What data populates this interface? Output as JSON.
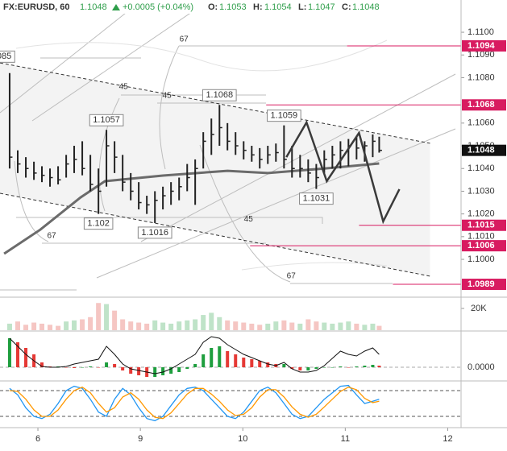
{
  "header": {
    "symbol": "FX:EURUSD, 60",
    "last": "1.1048",
    "change": "+0.0005 (+0.04%)",
    "o_label": "O:",
    "open": "1.1053",
    "h_label": "H:",
    "high": "1.1054",
    "l_label": "L:",
    "low": "1.1047",
    "c_label": "C:",
    "close": "1.1048"
  },
  "chart_data": [
    {
      "type": "ohlc",
      "color": "#222222",
      "x": [
        -0.276,
        -0.197,
        -0.118,
        -0.039,
        0.039,
        0.118,
        0.197,
        0.276,
        0.354,
        0.433,
        0.512,
        0.591,
        0.669,
        0.748,
        0.827,
        0.906,
        0.984,
        1.063,
        1.142,
        1.22,
        1.299,
        1.378,
        1.457,
        1.535,
        1.614,
        1.693,
        1.772,
        1.85,
        1.929,
        2.008,
        2.087,
        2.165,
        2.244,
        2.323,
        2.402,
        2.48,
        2.559,
        2.638,
        2.717,
        2.795,
        2.874,
        2.953,
        3.031,
        3.11,
        3.189,
        3.268,
        3.331
      ],
      "high": [
        1.1082,
        1.1048,
        1.1045,
        1.1043,
        1.1041,
        1.104,
        1.1041,
        1.1046,
        1.105,
        1.1052,
        1.1046,
        1.104,
        1.1057,
        1.1052,
        1.1046,
        1.1038,
        1.1034,
        1.1028,
        1.103,
        1.1032,
        1.1034,
        1.1036,
        1.1042,
        1.1044,
        1.1056,
        1.1062,
        1.1068,
        1.106,
        1.1056,
        1.1052,
        1.105,
        1.1049,
        1.105,
        1.1051,
        1.1059,
        1.105,
        1.1046,
        1.1044,
        1.1042,
        1.1048,
        1.105,
        1.1052,
        1.1053,
        1.1054,
        1.1052,
        1.1055,
        1.1054
      ],
      "low": [
        1.104,
        1.1038,
        1.1036,
        1.1035,
        1.1034,
        1.1032,
        1.1033,
        1.1036,
        1.1038,
        1.1037,
        1.103,
        1.102,
        1.1032,
        1.1038,
        1.103,
        1.1026,
        1.1022,
        1.102,
        1.1016,
        1.1022,
        1.1024,
        1.1026,
        1.103,
        1.1024,
        1.104,
        1.1046,
        1.105,
        1.1048,
        1.1046,
        1.1044,
        1.1043,
        1.104,
        1.1042,
        1.1043,
        1.104,
        1.1036,
        1.1036,
        1.1034,
        1.1031,
        1.1038,
        1.104,
        1.104,
        1.1041,
        1.1044,
        1.1043,
        1.1045,
        1.1047
      ],
      "close": [
        1.1045,
        1.1042,
        1.104,
        1.1038,
        1.1037,
        1.1036,
        1.1035,
        1.1042,
        1.1044,
        1.104,
        1.1033,
        1.103,
        1.105,
        1.1045,
        1.1034,
        1.103,
        1.1025,
        1.1024,
        1.1026,
        1.1028,
        1.103,
        1.1032,
        1.1036,
        1.104,
        1.1052,
        1.1055,
        1.1058,
        1.1052,
        1.105,
        1.1048,
        1.1046,
        1.1044,
        1.1046,
        1.1047,
        1.1044,
        1.104,
        1.104,
        1.1038,
        1.1036,
        1.1044,
        1.1046,
        1.1048,
        1.105,
        1.1049,
        1.105,
        1.1052,
        1.1048
      ],
      "ma": {
        "color": "#6b6b6b",
        "x": [
          -0.33,
          0.024,
          0.417,
          0.654,
          1.22,
          1.85,
          2.244,
          2.795,
          3.331
        ],
        "values": [
          1.10025,
          1.10131,
          1.10273,
          1.10344,
          1.10369,
          1.1039,
          1.1038,
          1.104,
          1.10422
        ]
      },
      "channel": {
        "color": "#333333",
        "fill": "#f3f3f3",
        "x": [
          -0.37,
          3.827
        ],
        "upper": [
          1.10865,
          1.10511
        ],
        "lower": [
          1.10291,
          1.09926
        ]
      },
      "projection": {
        "color": "#3a3a3a",
        "x": [
          2.425,
          2.622,
          2.819,
          3.134,
          3.37,
          3.528
        ],
        "values": [
          1.1045,
          1.10603,
          1.10344,
          1.10557,
          1.10167,
          1.10309
        ]
      },
      "levels": [
        {
          "value": 1.1094,
          "x0": 3.016
        },
        {
          "value": 1.1068,
          "x0": 2.228
        },
        {
          "value": 1.1015,
          "x0": 3.134
        },
        {
          "value": 1.1006,
          "x0": 2.071
        },
        {
          "value": 1.0989,
          "x0": 3.465
        }
      ],
      "level_color": "#d81b60",
      "last": 1.1048,
      "annotations": [
        {
          "x": -0.33,
          "value": 1.1085,
          "label": "085",
          "side": "above"
        },
        {
          "x": 0.669,
          "value": 1.1057,
          "side": "above"
        },
        {
          "x": 1.772,
          "value": 1.1068,
          "side": "above"
        },
        {
          "x": 2.402,
          "value": 1.1059,
          "side": "above"
        },
        {
          "x": 2.717,
          "value": 1.1031,
          "side": "below"
        },
        {
          "x": 0.591,
          "value": 1.102,
          "side": "below"
        },
        {
          "x": 1.142,
          "value": 1.1016,
          "side": "below"
        }
      ],
      "fib_labels": [
        {
          "x": 1.425,
          "y": 1.10968,
          "value": 67
        },
        {
          "x": 0.835,
          "y": 1.10759,
          "value": 45
        },
        {
          "x": 1.26,
          "y": 1.1072,
          "value": 45
        },
        {
          "x": 2.055,
          "y": 1.10177,
          "value": 45
        },
        {
          "x": 0.134,
          "y": 1.10103,
          "value": 67
        },
        {
          "x": 2.472,
          "y": 1.09926,
          "value": 67
        }
      ],
      "xlim": [
        -0.37,
        4.13
      ],
      "xticks": [
        {
          "value": 0,
          "label": "6"
        },
        {
          "value": 1,
          "label": "9"
        },
        {
          "value": 2,
          "label": "10"
        },
        {
          "value": 3,
          "label": "11"
        },
        {
          "value": 4,
          "label": "12"
        }
      ],
      "ylim": [
        1.09837,
        1.11142
      ],
      "yticks": [
        {
          "value": 1.11,
          "label": "1.1100"
        },
        {
          "value": 1.109,
          "label": "1.1090"
        },
        {
          "value": 1.108,
          "label": "1.1080"
        },
        {
          "value": 1.106,
          "label": "1.1060"
        },
        {
          "value": 1.105,
          "label": "1.1050"
        },
        {
          "value": 1.104,
          "label": "1.1040"
        },
        {
          "value": 1.103,
          "label": "1.1030"
        },
        {
          "value": 1.102,
          "label": "1.1020"
        },
        {
          "value": 1.101,
          "label": "1.1010"
        },
        {
          "value": 1.1,
          "label": "1.1000"
        }
      ]
    },
    {
      "type": "bar",
      "up_color": "#bfe3c8",
      "down_color": "#f5c6c3",
      "values": [
        6000,
        8000,
        5000,
        7000,
        6000,
        5000,
        4000,
        8000,
        9000,
        10000,
        12000,
        25000,
        24000,
        18000,
        10000,
        8000,
        7000,
        6000,
        9000,
        7000,
        6000,
        8000,
        9000,
        10000,
        14000,
        16000,
        12000,
        9000,
        8000,
        7000,
        6000,
        5000,
        6000,
        8000,
        9000,
        7000,
        6000,
        10000,
        8000,
        7000,
        6000,
        7000,
        8000,
        6000,
        5000,
        6000,
        4000
      ],
      "ylim": [
        0,
        29600
      ],
      "yticks": [
        {
          "value": 20000,
          "label": "20K"
        }
      ]
    },
    {
      "type": "macd",
      "line_color": "#111111",
      "up_color": "#1e9e3e",
      "down_color": "#e53935",
      "line": [
        0.00072,
        0.00052,
        0.00032,
        0.00016,
        2e-05,
        0,
        0,
        2e-05,
        8e-05,
        0.00012,
        0.00016,
        0.0002,
        0.00052,
        0.00032,
        8e-05,
        -4e-05,
        -8e-05,
        -0.00012,
        -0.00016,
        -0.00012,
        -4e-05,
        8e-05,
        0.0002,
        0.00032,
        0.00062,
        0.00076,
        0.00072,
        0.00056,
        0.00044,
        0.00032,
        0.00024,
        0.00016,
        8e-05,
        4e-05,
        0.00012,
        -4e-05,
        -0.00012,
        -0.00012,
        -8e-05,
        4e-05,
        0.00022,
        0.0004,
        0.00032,
        0.00028,
        0.0004,
        0.00048,
        0.00032
      ],
      "histogram": [
        0.00072,
        0.00062,
        0.00048,
        0.00032,
        0.00012,
        2e-05,
        2e-05,
        0,
        -2e-05,
        0,
        2e-05,
        0,
        0.00012,
        8e-05,
        -8e-05,
        -0.00016,
        -0.0002,
        -0.00024,
        -0.00024,
        -0.0002,
        -0.00016,
        -0.00012,
        -4e-05,
        8e-05,
        0.00032,
        0.00048,
        0.00052,
        0.0004,
        0.00032,
        0.00024,
        0.0002,
        0.00016,
        0.00012,
        8e-05,
        8e-05,
        -4e-05,
        -8e-05,
        -8e-05,
        -4e-05,
        0,
        0,
        2e-05,
        0,
        2e-05,
        4e-05,
        6e-05,
        4e-05
      ],
      "ylim": [
        -0.00032,
        0.00088
      ],
      "yticks": [
        {
          "value": 0,
          "label": "0.0000"
        }
      ]
    },
    {
      "type": "stochastic",
      "series": [
        {
          "color": "#2196f3",
          "values": [
            85,
            70,
            40,
            20,
            15,
            25,
            50,
            80,
            90,
            85,
            60,
            30,
            20,
            60,
            85,
            70,
            40,
            15,
            10,
            20,
            45,
            70,
            85,
            88,
            80,
            60,
            40,
            20,
            15,
            30,
            55,
            80,
            88,
            75,
            50,
            25,
            15,
            20,
            40,
            60,
            75,
            90,
            92,
            70,
            50,
            55,
            60
          ]
        },
        {
          "color": "#ff9800",
          "values": [
            80,
            78,
            60,
            35,
            20,
            20,
            35,
            60,
            80,
            88,
            75,
            50,
            30,
            40,
            65,
            75,
            60,
            35,
            18,
            15,
            28,
            50,
            72,
            85,
            85,
            72,
            55,
            35,
            22,
            25,
            40,
            65,
            82,
            82,
            65,
            42,
            25,
            18,
            25,
            42,
            60,
            78,
            88,
            82,
            62,
            52,
            55
          ]
        }
      ],
      "bands": [
        80,
        20
      ],
      "ylim": [
        0,
        100
      ]
    }
  ]
}
